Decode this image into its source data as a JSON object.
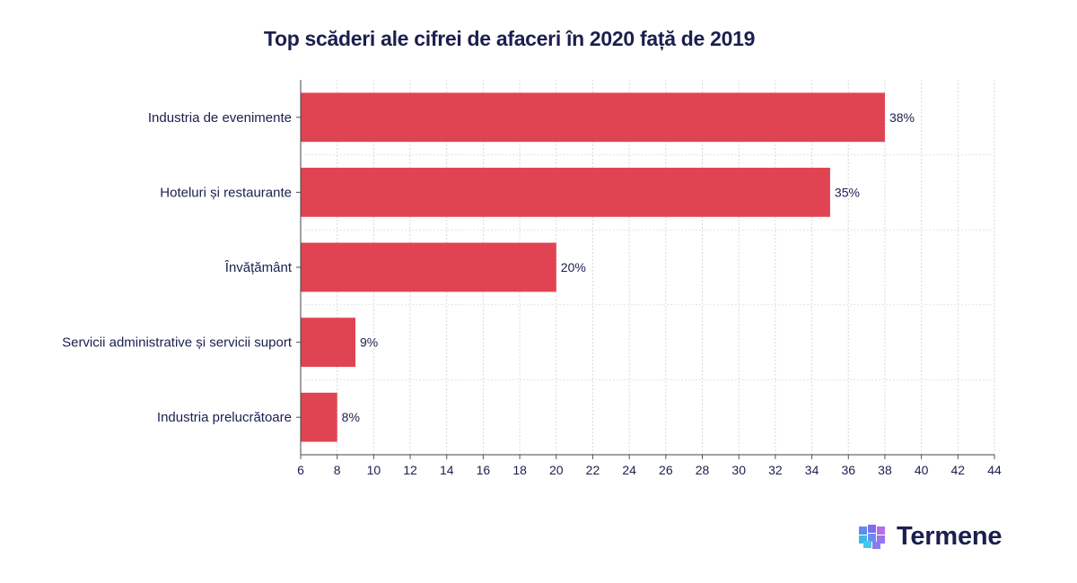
{
  "chart_data": {
    "type": "bar",
    "orientation": "horizontal",
    "title": "Top scăderi ale cifrei de afaceri în 2020 față de 2019",
    "categories": [
      "Industria de evenimente",
      "Hoteluri și restaurante",
      "Învățământ",
      "Servicii administrative și servicii suport",
      "Industria prelucrătoare"
    ],
    "values": [
      38,
      35,
      20,
      9,
      8
    ],
    "data_labels": [
      "38%",
      "35%",
      "20%",
      "9%",
      "8%"
    ],
    "xlabel": "",
    "ylabel": "",
    "xlim": [
      6,
      44
    ],
    "xticks": [
      6,
      8,
      10,
      12,
      14,
      16,
      18,
      20,
      22,
      24,
      26,
      28,
      30,
      32,
      34,
      36,
      38,
      40,
      42,
      44
    ],
    "grid": true,
    "bar_color": "#e04452"
  },
  "brand": {
    "name": "Termene",
    "logo_icon": "cube-logo-icon"
  }
}
